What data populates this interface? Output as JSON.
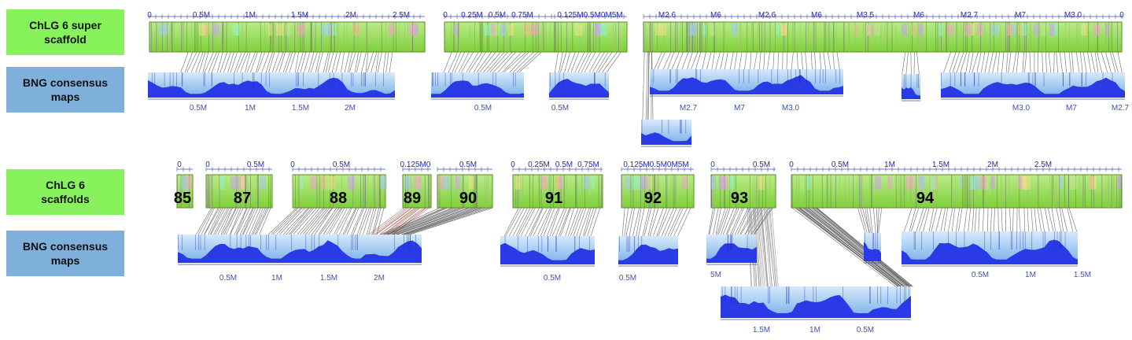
{
  "labels": {
    "top_green": "ChLG 6 super scaffold",
    "top_blue": "BNG consensus maps",
    "bottom_green": "ChLG 6 scaffolds",
    "bottom_blue": "BNG consensus maps"
  },
  "colors": {
    "scaffold_green": "#8bd43a",
    "bng_blue": "#2a3ae6",
    "label_green": "#87f25c",
    "label_blue": "#7fb0dc",
    "alignment_line": "#555555"
  },
  "top_scaffold_ticks": [
    {
      "block": 0,
      "labels": [
        "0",
        "0.5M",
        "1M",
        "1.5M",
        "2M",
        "2.5M"
      ]
    },
    {
      "block": 1,
      "labels": [
        "0",
        "0.25M",
        "0.5M",
        "0.75M"
      ]
    },
    {
      "block": 2,
      "labels": [
        "0.125M0.5M0M5M"
      ]
    },
    {
      "block": 3,
      "labels": [
        "M2.6",
        "M6",
        "M2.6",
        "M6",
        "M3.5",
        "M6",
        "M2.7",
        "M7",
        "M3.0",
        "0"
      ]
    }
  ],
  "top_bng_ticks": [
    {
      "map": 0,
      "labels": [
        "0.5M",
        "1M",
        "1.5M",
        "2M"
      ]
    },
    {
      "map": 1,
      "labels": [
        "0.5M"
      ]
    },
    {
      "map": 2,
      "labels": [
        "0.5M"
      ]
    },
    {
      "map": 3,
      "labels": [
        "M2.7",
        "M7",
        "M3.0"
      ]
    },
    {
      "map": 5,
      "labels": [
        "M3.0",
        "M7",
        "M2.7"
      ]
    }
  ],
  "bottom_scaffolds": [
    {
      "number": "85",
      "ticks": [
        "0"
      ]
    },
    {
      "number": "87",
      "ticks": [
        "0",
        "0.5M"
      ]
    },
    {
      "number": "88",
      "ticks": [
        "0",
        "0.5M"
      ]
    },
    {
      "number": "89",
      "ticks": [
        "0.125M0"
      ]
    },
    {
      "number": "90",
      "ticks": [
        "0.5M"
      ]
    },
    {
      "number": "91",
      "ticks": [
        "0",
        "0.25M",
        "0.5M",
        "0.75M"
      ]
    },
    {
      "number": "92",
      "ticks": [
        "0.125M0.5M0M5M"
      ]
    },
    {
      "number": "93",
      "ticks": [
        "0",
        "0.5M"
      ]
    },
    {
      "number": "94",
      "ticks": [
        "0",
        "0.5M",
        "1M",
        "1.5M",
        "2M",
        "2.5M"
      ]
    }
  ],
  "bottom_bng_ticks": [
    {
      "map": 0,
      "labels": [
        "0.5M",
        "1M",
        "1.5M",
        "2M"
      ]
    },
    {
      "map": 1,
      "labels": [
        "0.5M"
      ]
    },
    {
      "map": 2,
      "labels": [
        "0.5M"
      ]
    },
    {
      "map": 3,
      "labels": [
        "5M"
      ]
    },
    {
      "map": 4,
      "labels": [
        "0.5M",
        "1M",
        "1.5M"
      ]
    },
    {
      "map": 5,
      "labels": [
        "1.5M",
        "1M",
        "0.5M"
      ]
    }
  ]
}
